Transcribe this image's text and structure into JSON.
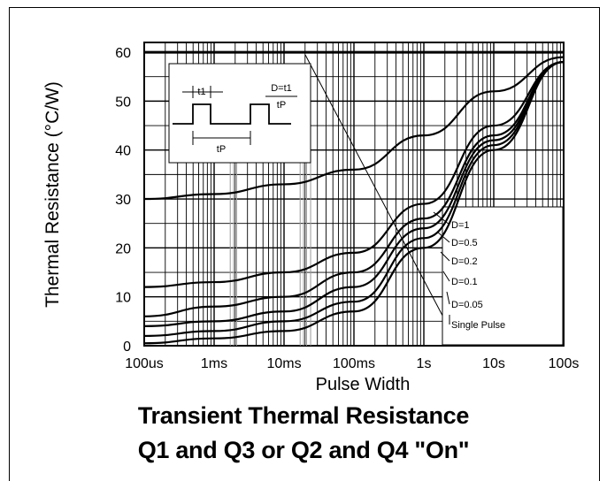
{
  "chart_data": {
    "type": "line",
    "title_line1": "Transient Thermal Resistance",
    "title_line2": "Q1 and Q3 or Q2 and Q4 \"On\"",
    "xlabel": "Pulse Width",
    "ylabel": "Thermal Resistance (°C/W)",
    "xscale": "log",
    "x_tick_labels": [
      "100us",
      "1ms",
      "10ms",
      "100ms",
      "1s",
      "10s",
      "100s"
    ],
    "x_tick_values": [
      0.0001,
      0.001,
      0.01,
      0.1,
      1,
      10,
      100
    ],
    "y_tick_labels": [
      "0",
      "10",
      "20",
      "30",
      "40",
      "50",
      "60"
    ],
    "ylim": [
      0,
      62
    ],
    "grid": true,
    "series": [
      {
        "name": "D=1",
        "x": [
          0.0001,
          0.001,
          0.01,
          0.1,
          1,
          10,
          100
        ],
        "y": [
          30,
          31,
          33,
          36,
          43,
          52,
          59
        ]
      },
      {
        "name": "D=0.5",
        "x": [
          0.0001,
          0.001,
          0.01,
          0.1,
          1,
          10,
          100
        ],
        "y": [
          12,
          13,
          15,
          19,
          29,
          45,
          58
        ]
      },
      {
        "name": "D=0.2",
        "x": [
          0.0001,
          0.001,
          0.01,
          0.1,
          1,
          10,
          100
        ],
        "y": [
          6,
          8,
          10,
          15,
          26,
          43,
          58
        ]
      },
      {
        "name": "D=0.1",
        "x": [
          0.0001,
          0.001,
          0.01,
          0.1,
          1,
          10,
          100
        ],
        "y": [
          4,
          5,
          7,
          12,
          24,
          42,
          58
        ]
      },
      {
        "name": "D=0.05",
        "x": [
          0.0001,
          0.001,
          0.01,
          0.1,
          1,
          10,
          100
        ],
        "y": [
          2,
          3,
          5,
          9,
          22,
          41,
          58
        ]
      },
      {
        "name": "Single Pulse",
        "x": [
          0.0001,
          0.001,
          0.01,
          0.1,
          1,
          10,
          100
        ],
        "y": [
          0.5,
          1.5,
          3,
          7,
          20,
          40,
          58
        ]
      }
    ],
    "inset": {
      "t1_label": "t1",
      "duty_formula_num": "D=t1",
      "duty_formula_den": "tP",
      "tp_label": "tP"
    }
  }
}
